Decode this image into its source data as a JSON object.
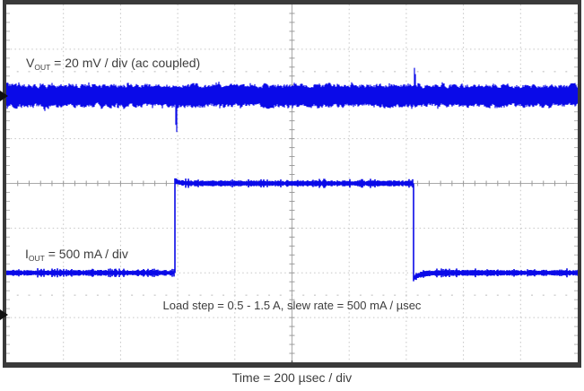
{
  "labels": {
    "vout": {
      "pre": "V",
      "sub": "OUT",
      "post": " = 20 mV / div (ac coupled)"
    },
    "iout": {
      "pre": "I",
      "sub": "OUT",
      "post": " = 500 mA / div"
    },
    "load_step": "Load step = 0.5 - 1.5 A, slew rate = 500 mA / µsec",
    "time": "Time = 200 µsec / div"
  },
  "chart_data": {
    "type": "line",
    "title": "",
    "xlabel": "Time = 200 µsec / div",
    "ylabel": "",
    "x_axis": {
      "time_per_div_us": 200,
      "divisions": 10,
      "total_span_us": 2000
    },
    "y_axis": {
      "divisions": 8,
      "grid": "dotted",
      "center_crosshair": true
    },
    "annotations": [
      "Load step = 0.5 - 1.5 A, slew rate = 500 mA / µsec"
    ],
    "series": [
      {
        "name": "VOUT",
        "scale_label": "VOUT = 20 mV / div (ac coupled)",
        "units_per_div_mV": 20,
        "coupling": "ac",
        "center_at_div_from_top": 2,
        "mean_mV": 0,
        "noise_mVpp": 10,
        "neg_transient": {
          "t_us": -408,
          "peak_mV": -13
        },
        "pos_transient": {
          "t_us": 428,
          "peak_mV": 12.5
        }
      },
      {
        "name": "IOUT",
        "scale_label": "IOUT = 500 mA / div",
        "units_per_div_mA": 500,
        "zero_at_div_from_top": 7,
        "low_A": 0.5,
        "high_A": 1.5,
        "step_up_t_us": -410,
        "step_down_t_us": 424,
        "slew_rate_mA_per_us": 500
      }
    ],
    "colors": {
      "trace": "#0a0ae8",
      "grid_dotted": "#c5c5c5",
      "grid_center": "#a9a9a9",
      "grid_ticks": "#9a9a9a",
      "half_div_dots": "#d2d2d2",
      "border": "#3a3a3a",
      "text": "#3d3d3d",
      "marker": "#111111",
      "background": "#ffffff"
    }
  }
}
